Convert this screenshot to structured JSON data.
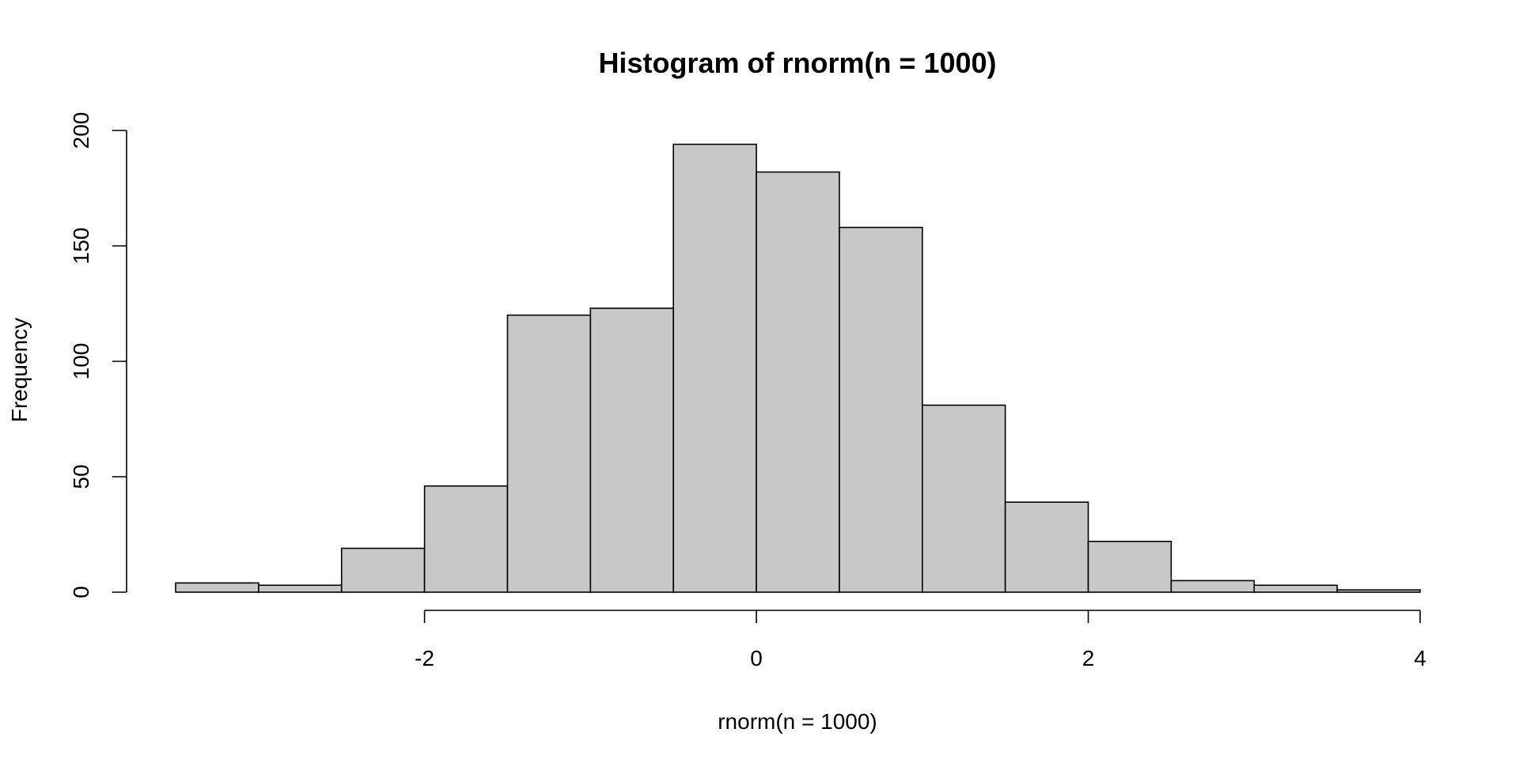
{
  "chart_data": {
    "type": "bar",
    "title": "Histogram of rnorm(n = 1000)",
    "xlabel": "rnorm(n = 1000)",
    "ylabel": "Frequency",
    "bin_edges": [
      -3.5,
      -3.0,
      -2.5,
      -2.0,
      -1.5,
      -1.0,
      -0.5,
      0.0,
      0.5,
      1.0,
      1.5,
      2.0,
      2.5,
      3.0,
      3.5,
      4.0
    ],
    "values": [
      4,
      3,
      19,
      46,
      120,
      123,
      194,
      182,
      158,
      81,
      39,
      22,
      5,
      3,
      1
    ],
    "xlim": [
      -3.5,
      4
    ],
    "ylim": [
      0,
      200
    ],
    "x_ticks": [
      -2,
      0,
      2,
      4
    ],
    "x_tick_labels": [
      "-2",
      "0",
      "2",
      "4"
    ],
    "y_ticks": [
      0,
      50,
      100,
      150,
      200
    ],
    "y_tick_labels": [
      "0",
      "50",
      "100",
      "150",
      "200"
    ],
    "grid": false,
    "legend": "none",
    "bar_color": "#c8c8c8",
    "edge_color": "#000000"
  }
}
